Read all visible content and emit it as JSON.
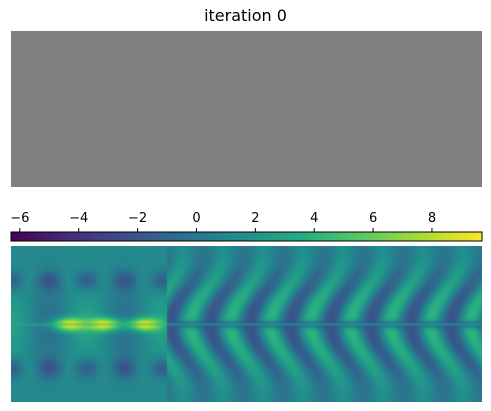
{
  "title": "iteration 0",
  "chart_data": [
    {
      "type": "heatmap",
      "panel": "design",
      "description_value": "uniform gray (all cells equal)",
      "fill_color": "#808080"
    },
    {
      "type": "heatmap",
      "panel": "field",
      "colormap": "viridis",
      "colorbar": {
        "orientation": "horizontal",
        "ticks_position": "top",
        "vmin": -6.3,
        "vmax": 9.7,
        "ticks": [
          -6,
          -4,
          -2,
          0,
          2,
          4,
          6,
          8
        ],
        "tick_labels": [
          "−6",
          "−4",
          "−2",
          "0",
          "2",
          "4",
          "6",
          "8"
        ]
      },
      "features": {
        "source_line_y": 0.5,
        "bright_spots_x": [
          0.12,
          0.2,
          0.28
        ],
        "transition_x": 0.33,
        "wave_region": "right of transition: vertical standing-wave bands"
      }
    }
  ]
}
